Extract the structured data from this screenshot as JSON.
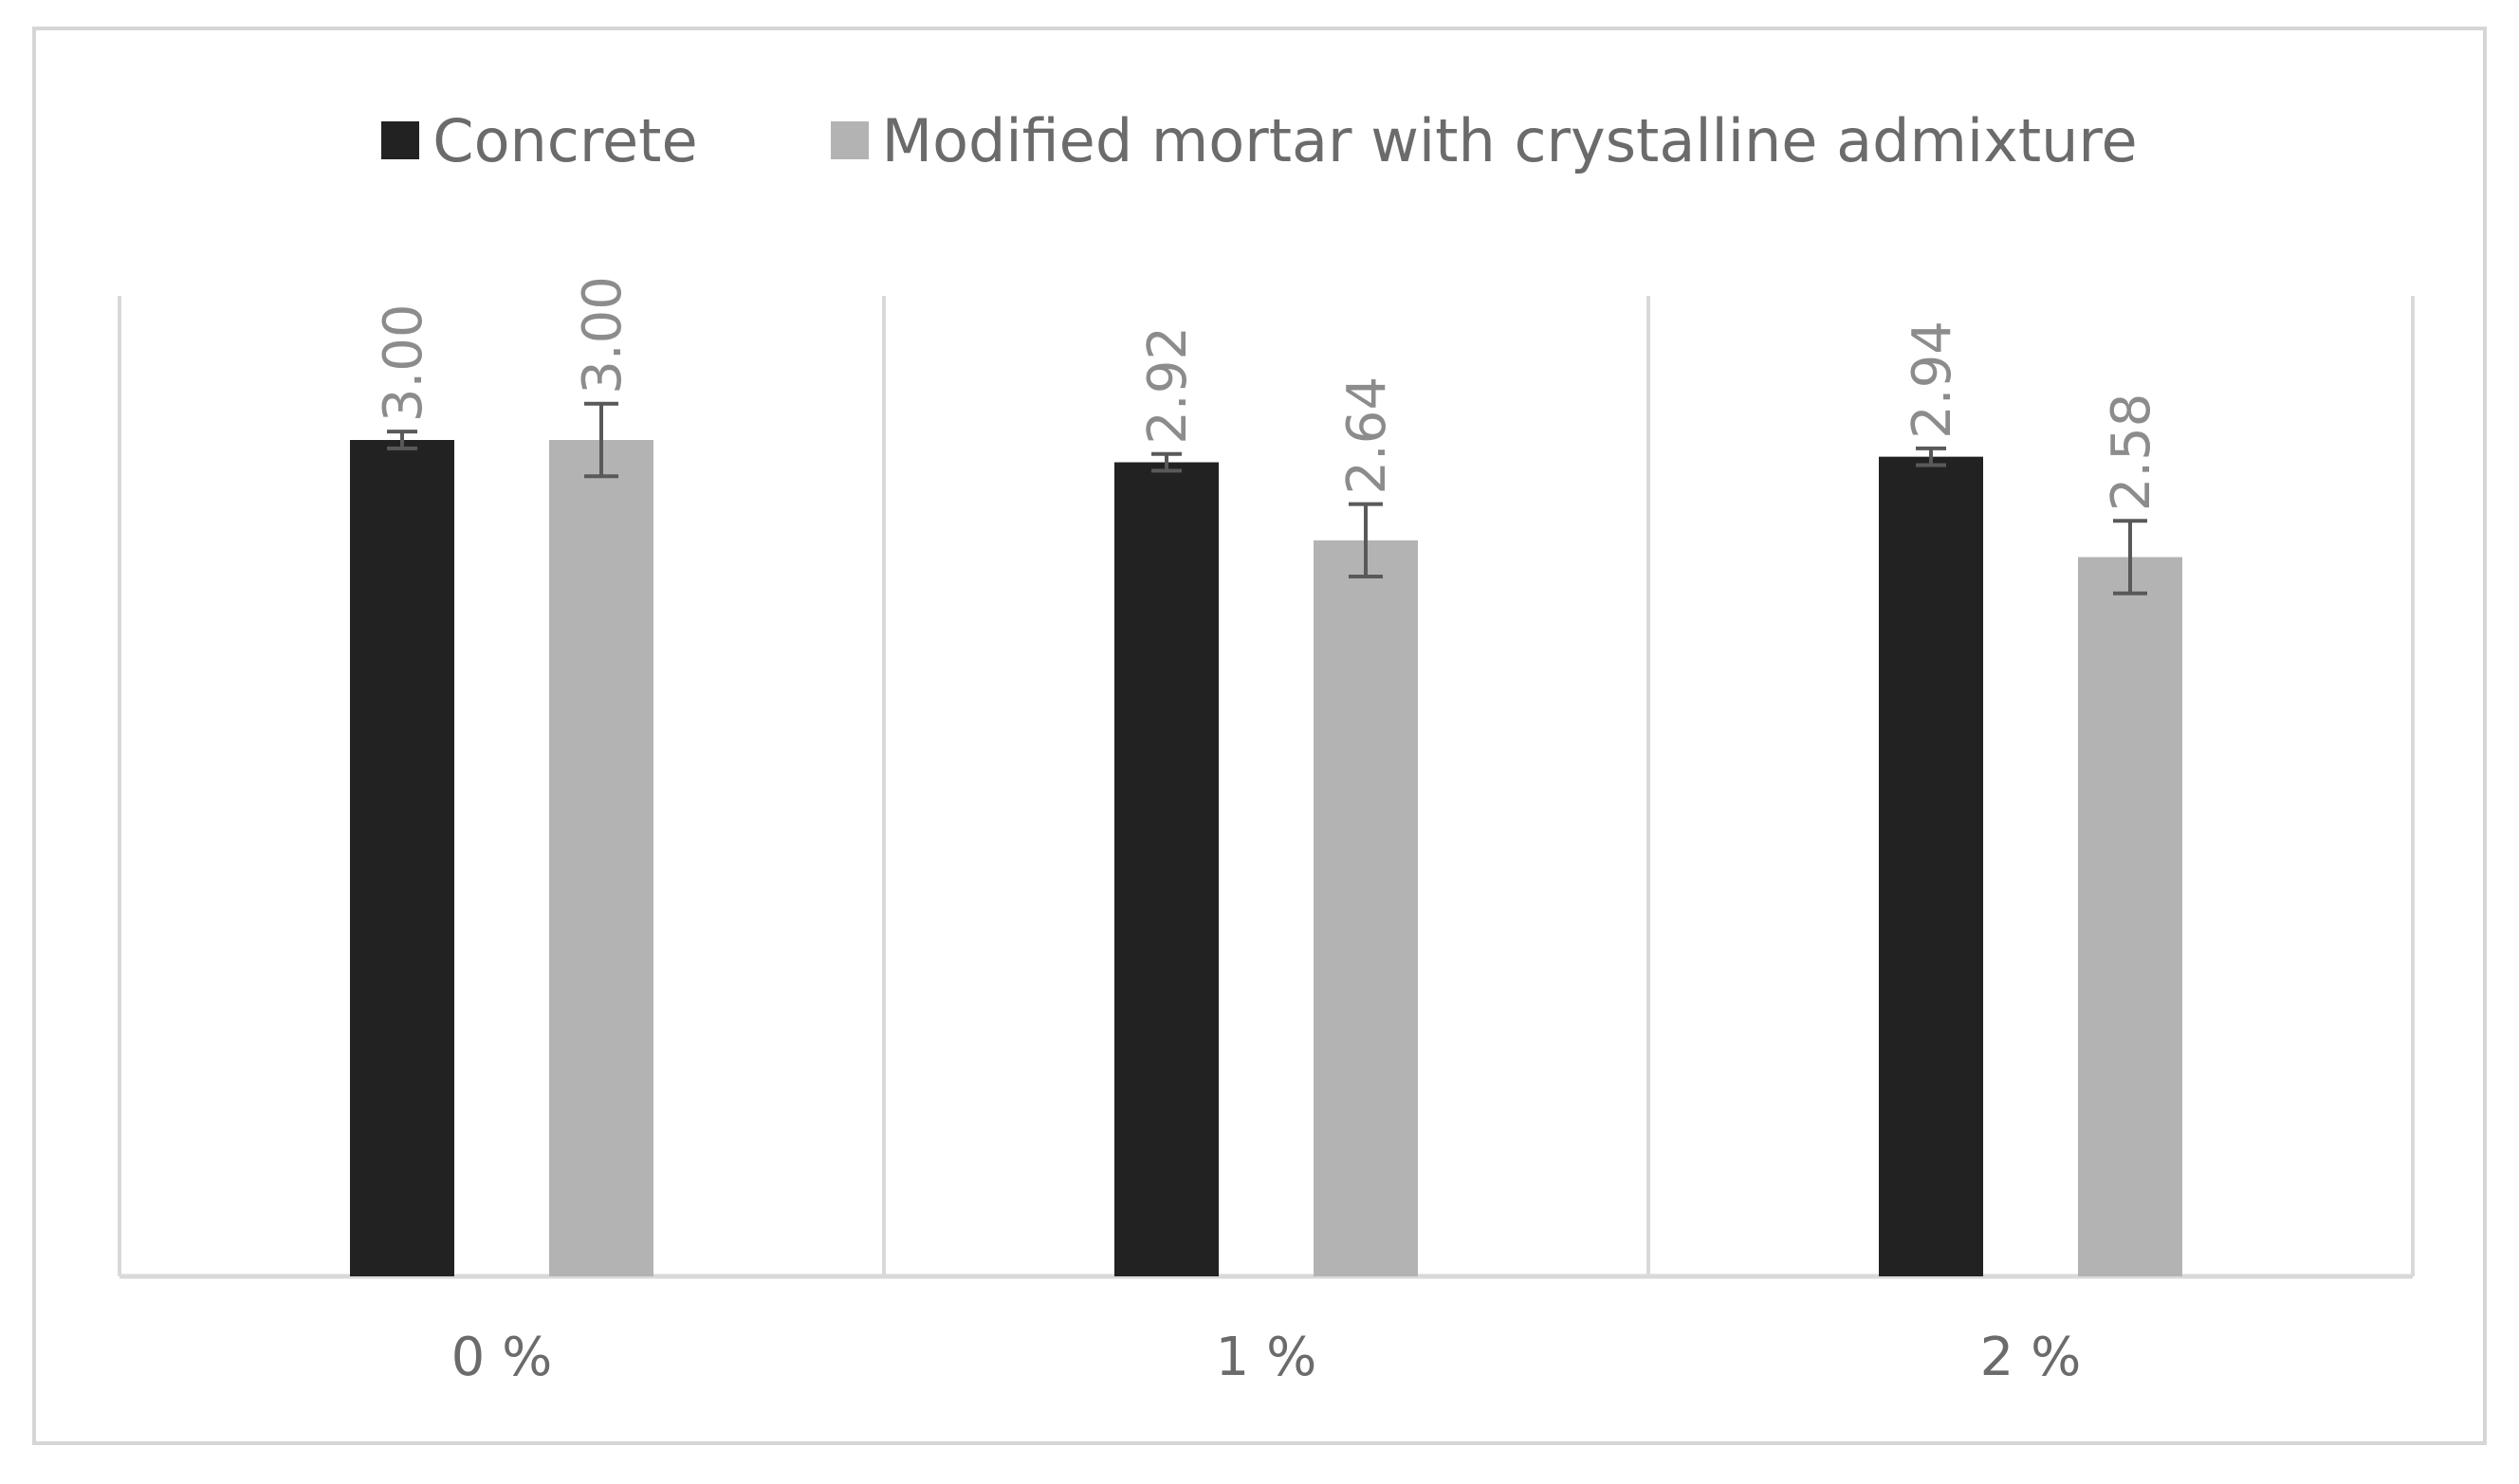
{
  "chart_data": {
    "type": "bar",
    "title": "",
    "xlabel": "",
    "ylabel": "",
    "categories": [
      "0 %",
      "1 %",
      "2 %"
    ],
    "series": [
      {
        "name": "Concrete",
        "color": "#222222",
        "values": [
          3.0,
          2.92,
          2.94
        ],
        "value_labels": [
          "3.00",
          "2.92",
          "2.94"
        ],
        "error": [
          0.03,
          0.03,
          0.03
        ]
      },
      {
        "name": "Modified mortar with crystalline admixture",
        "color": "#b3b3b3",
        "values": [
          3.0,
          2.64,
          2.58
        ],
        "value_labels": [
          "3.00",
          "2.64",
          "2.58"
        ],
        "error": [
          0.13,
          0.13,
          0.13
        ]
      }
    ],
    "ylim": [
      0,
      3.0
    ],
    "legend_position": "top-center",
    "y_axis_visible": false,
    "vertical_gridlines": true,
    "error_bars": true,
    "error_bar_color": "#595959",
    "axis_color": "#d9d9d9"
  }
}
